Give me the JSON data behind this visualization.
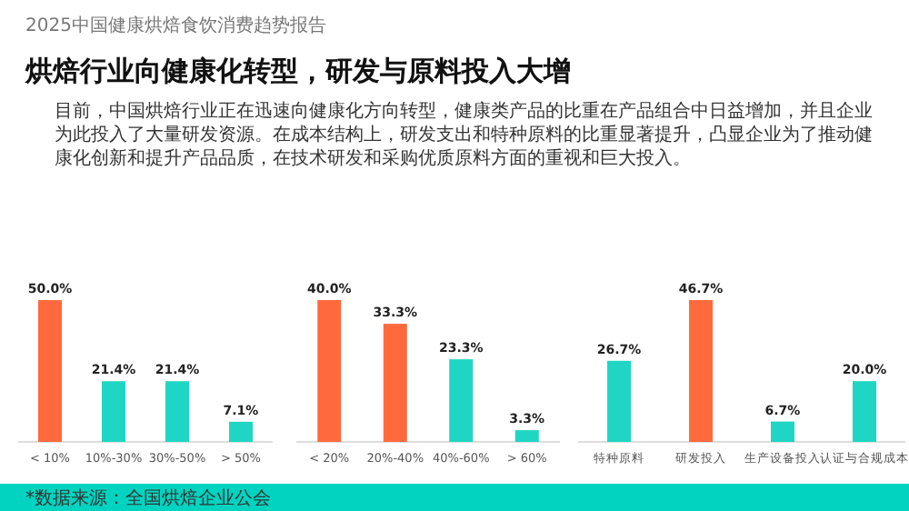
{
  "chart_data": [
    {
      "type": "bar",
      "categories": [
        "< 10%",
        "10%-30%",
        "30%-50%",
        "> 50%"
      ],
      "values": [
        50.0,
        21.4,
        21.4,
        7.1
      ],
      "value_labels": [
        "50.0%",
        "21.4%",
        "21.4%",
        "7.1%"
      ],
      "colors": [
        "#ff6a3d",
        "#1fd6c4",
        "#1fd6c4",
        "#1fd6c4"
      ],
      "annotations": [
        "2025中国健康烘焙食饮消费趋势报告",
        "烘焙行业向健康化转型，研发与原料投入大增",
        "目前，中国烘焙行业正在迅速向健康化方向转型，健康类产品的比重在产品组合中日益增加，并且企业为此投入了大量研发资源。在成本结构上，研发支出和特种原料的比重显著提升，凸显企业为了推动健康化创新和提升产品品质，在技术研发和采购优质原料方面的重视和巨大投入。",
        "*数据来源：全国烘焙企业公会"
      ]
    },
    {
      "type": "bar",
      "categories": [
        "< 20%",
        "20%-40%",
        "40%-60%",
        "> 60%"
      ],
      "values": [
        40.0,
        33.3,
        23.3,
        3.3
      ],
      "value_labels": [
        "40.0%",
        "33.3%",
        "23.3%",
        "3.3%"
      ],
      "colors": [
        "#ff6a3d",
        "#ff6a3d",
        "#1fd6c4",
        "#1fd6c4"
      ]
    },
    {
      "type": "bar",
      "categories": [
        "特种原料",
        "研发投入",
        "生产设备投入",
        "认证与合规成本"
      ],
      "values": [
        26.7,
        46.7,
        6.7,
        20.0
      ],
      "value_labels": [
        "26.7%",
        "46.7%",
        "6.7%",
        "20.0%"
      ],
      "colors": [
        "#1fd6c4",
        "#ff6a3d",
        "#1fd6c4",
        "#1fd6c4"
      ]
    }
  ]
}
